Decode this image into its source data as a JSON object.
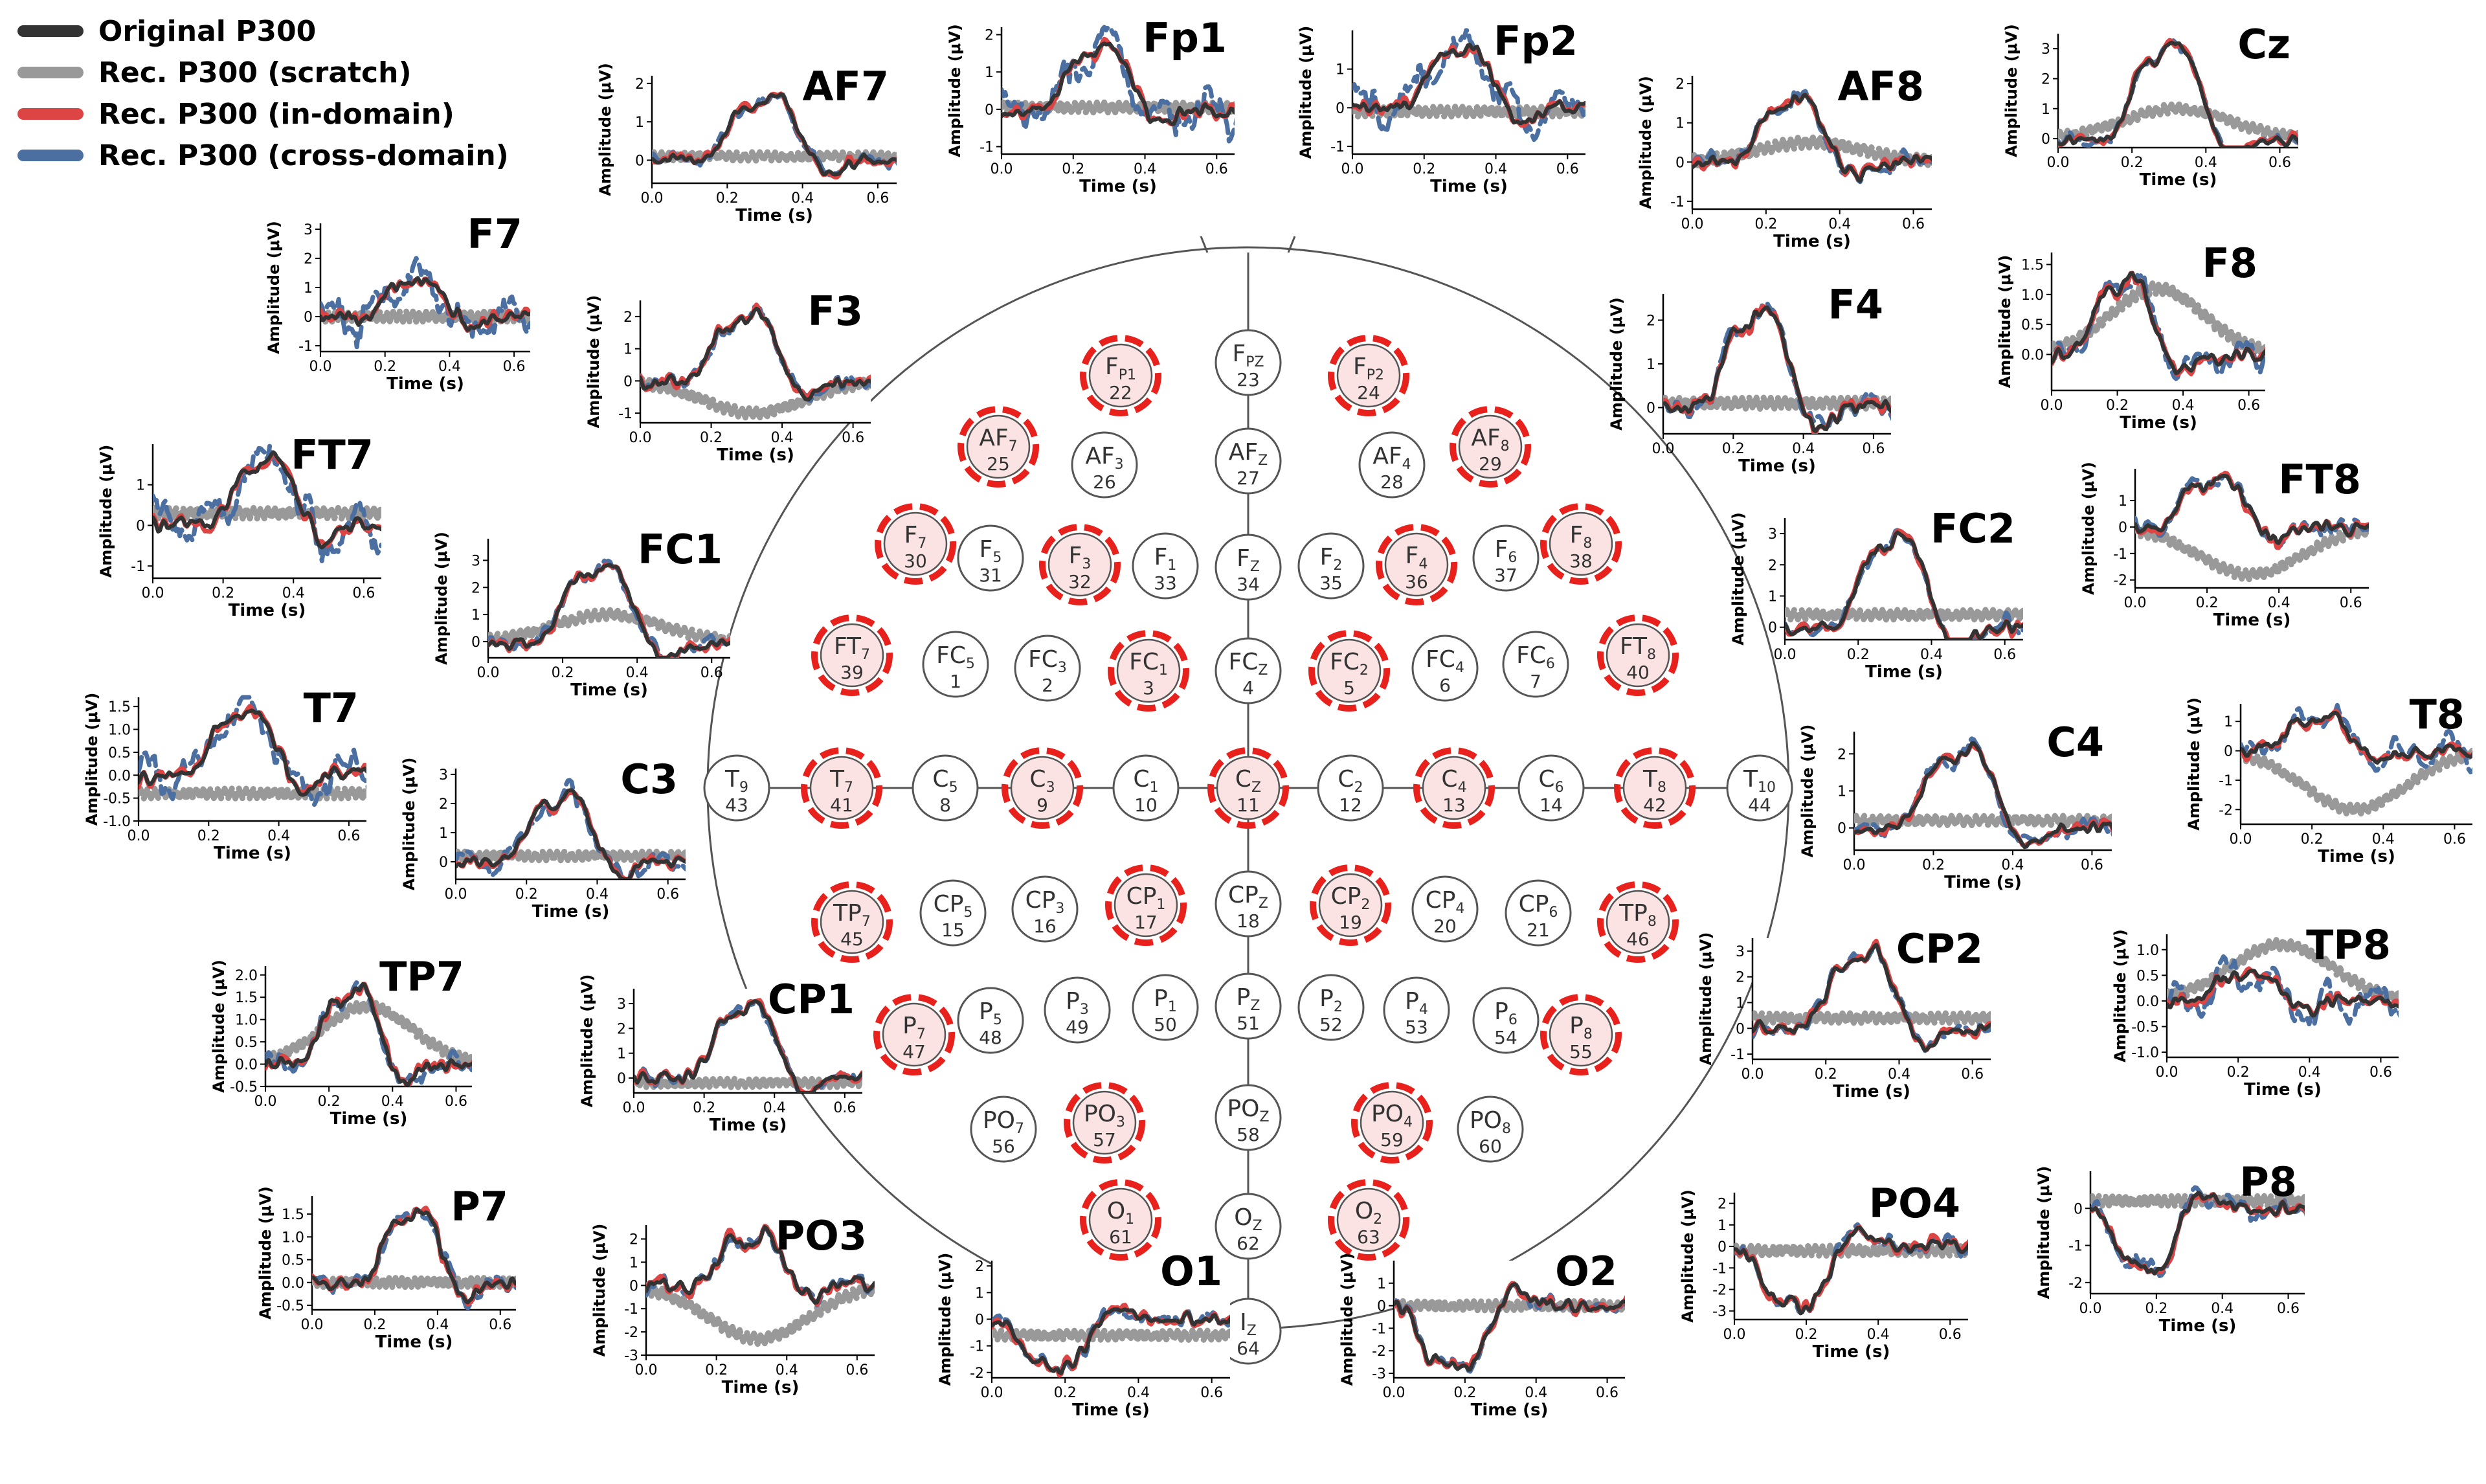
{
  "legend": {
    "items": [
      {
        "label": "Original P300",
        "color": "#333333",
        "dash": false
      },
      {
        "label": "Rec. P300 (scratch)",
        "color": "#999999",
        "dash": false
      },
      {
        "label": "Rec. P300 (in-domain)",
        "color": "#dd4444",
        "dash": false
      },
      {
        "label": "Rec. P300 (cross-domain)",
        "color": "#4a6fa0",
        "dash": false
      }
    ],
    "placement": "top-left"
  },
  "colors": {
    "original": "#333333",
    "scratch": "#999999",
    "in_domain": "#dd4444",
    "cross_domain": "#4a6fa0",
    "highlight_fill": "#fbe3e3",
    "highlight_ring": "#e8211d"
  },
  "axis_labels": {
    "x": "Time (s)",
    "y": "Amplitude (μV)"
  },
  "chart_data": [
    {
      "type": "line",
      "title": "Fp1",
      "xlim": [
        0,
        0.65
      ],
      "ylim": [
        -1.2,
        2.2
      ],
      "xticks": [
        "0.0",
        "0.2",
        "0.4",
        "0.6"
      ],
      "yticks": [
        "-1",
        "0",
        "1",
        "2"
      ],
      "peak": 1.7,
      "peak_t": 0.3,
      "scratch": {
        "shape": "flat",
        "level": 0.05
      },
      "cross_dev": 1.0
    },
    {
      "type": "line",
      "title": "Fp2",
      "xlim": [
        0,
        0.65
      ],
      "ylim": [
        -1.2,
        2.0
      ],
      "xticks": [
        "0.0",
        "0.2",
        "0.4",
        "0.6"
      ],
      "yticks": [
        "-1",
        "0",
        "1"
      ],
      "peak": 1.6,
      "peak_t": 0.33,
      "scratch": {
        "shape": "flat",
        "level": -0.1
      },
      "cross_dev": 0.9
    },
    {
      "type": "line",
      "title": "AF7",
      "xlim": [
        0,
        0.65
      ],
      "ylim": [
        -0.6,
        2.2
      ],
      "xticks": [
        "0.0",
        "0.2",
        "0.4",
        "0.6"
      ],
      "yticks": [
        "0",
        "1",
        "2"
      ],
      "peak": 1.7,
      "peak_t": 0.33,
      "scratch": {
        "shape": "flat",
        "level": 0.1
      },
      "cross_dev": 0.2
    },
    {
      "type": "line",
      "title": "AF8",
      "xlim": [
        0,
        0.65
      ],
      "ylim": [
        -1.2,
        2.2
      ],
      "xticks": [
        "0.0",
        "0.2",
        "0.4",
        "0.6"
      ],
      "yticks": [
        "-1",
        "0",
        "1",
        "2"
      ],
      "peak": 1.6,
      "peak_t": 0.3,
      "scratch": {
        "shape": "hump",
        "level": 0.5
      },
      "cross_dev": 0.2
    },
    {
      "type": "line",
      "title": "Cz",
      "xlim": [
        0,
        0.65
      ],
      "ylim": [
        -0.3,
        3.5
      ],
      "xticks": [
        "0.0",
        "0.2",
        "0.4",
        "0.6"
      ],
      "yticks": [
        "0",
        "1",
        "2",
        "3"
      ],
      "peak": 3.2,
      "peak_t": 0.33,
      "scratch": {
        "shape": "hump",
        "level": 1.0
      },
      "cross_dev": 0.15
    },
    {
      "type": "line",
      "title": "F7",
      "xlim": [
        0,
        0.65
      ],
      "ylim": [
        -1.2,
        3.2
      ],
      "xticks": [
        "0.0",
        "0.2",
        "0.4",
        "0.6"
      ],
      "yticks": [
        "-1",
        "0",
        "1",
        "2",
        "3"
      ],
      "peak": 1.3,
      "peak_t": 0.33,
      "scratch": {
        "shape": "flat",
        "level": 0.0
      },
      "cross_dev": 1.2
    },
    {
      "type": "line",
      "title": "F3",
      "xlim": [
        0,
        0.65
      ],
      "ylim": [
        -1.3,
        2.5
      ],
      "xticks": [
        "0.0",
        "0.2",
        "0.4",
        "0.6"
      ],
      "yticks": [
        "-1",
        "0",
        "1",
        "2"
      ],
      "peak": 2.1,
      "peak_t": 0.33,
      "scratch": {
        "shape": "dip",
        "level": -1.0
      },
      "cross_dev": 0.2
    },
    {
      "type": "line",
      "title": "F4",
      "xlim": [
        0,
        0.65
      ],
      "ylim": [
        -0.6,
        2.6
      ],
      "xticks": [
        "0.0",
        "0.2",
        "0.4",
        "0.6"
      ],
      "yticks": [
        "0",
        "1",
        "2"
      ],
      "peak": 2.3,
      "peak_t": 0.3,
      "scratch": {
        "shape": "flat",
        "level": 0.1
      },
      "cross_dev": 0.2
    },
    {
      "type": "line",
      "title": "F8",
      "xlim": [
        0,
        0.65
      ],
      "ylim": [
        -0.6,
        1.7
      ],
      "xticks": [
        "0.0",
        "0.2",
        "0.4",
        "0.6"
      ],
      "yticks": [
        "0.0",
        "0.5",
        "1.0",
        "1.5"
      ],
      "peak": 1.3,
      "peak_t": 0.25,
      "scratch": {
        "shape": "hump",
        "level": 1.1
      },
      "cross_dev": 0.3
    },
    {
      "type": "line",
      "title": "FT7",
      "xlim": [
        0,
        0.65
      ],
      "ylim": [
        -1.3,
        2.0
      ],
      "xticks": [
        "0.0",
        "0.2",
        "0.4",
        "0.6"
      ],
      "yticks": [
        "-1",
        "0",
        "1"
      ],
      "peak": 1.6,
      "peak_t": 0.35,
      "scratch": {
        "shape": "flat",
        "level": 0.3
      },
      "cross_dev": 0.9
    },
    {
      "type": "line",
      "title": "FT8",
      "xlim": [
        0,
        0.65
      ],
      "ylim": [
        -2.3,
        2.2
      ],
      "xticks": [
        "0.0",
        "0.2",
        "0.4",
        "0.6"
      ],
      "yticks": [
        "-2",
        "-1",
        "0",
        "1"
      ],
      "peak": 1.8,
      "peak_t": 0.25,
      "scratch": {
        "shape": "dip",
        "level": -1.8
      },
      "cross_dev": 0.3
    },
    {
      "type": "line",
      "title": "FC1",
      "xlim": [
        0,
        0.65
      ],
      "ylim": [
        -0.6,
        3.8
      ],
      "xticks": [
        "0.0",
        "0.2",
        "0.4",
        "0.6"
      ],
      "yticks": [
        "0",
        "1",
        "2",
        "3"
      ],
      "peak": 2.9,
      "peak_t": 0.33,
      "scratch": {
        "shape": "hump",
        "level": 1.0
      },
      "cross_dev": 0.3
    },
    {
      "type": "line",
      "title": "FC2",
      "xlim": [
        0,
        0.65
      ],
      "ylim": [
        -0.4,
        3.5
      ],
      "xticks": [
        "0.0",
        "0.2",
        "0.4",
        "0.6"
      ],
      "yticks": [
        "0",
        "1",
        "2",
        "3"
      ],
      "peak": 3.0,
      "peak_t": 0.33,
      "scratch": {
        "shape": "flat",
        "level": 0.4
      },
      "cross_dev": 0.2
    },
    {
      "type": "line",
      "title": "T7",
      "xlim": [
        0,
        0.65
      ],
      "ylim": [
        -1.0,
        1.7
      ],
      "xticks": [
        "0.0",
        "0.2",
        "0.4",
        "0.6"
      ],
      "yticks": [
        "-1.0",
        "-0.5",
        "0.0",
        "0.5",
        "1.0",
        "1.5"
      ],
      "peak": 1.5,
      "peak_t": 0.33,
      "scratch": {
        "shape": "flat",
        "level": -0.4
      },
      "cross_dev": 0.7
    },
    {
      "type": "line",
      "title": "T8",
      "xlim": [
        0,
        0.65
      ],
      "ylim": [
        -2.5,
        1.6
      ],
      "xticks": [
        "0.0",
        "0.2",
        "0.4",
        "0.6"
      ],
      "yticks": [
        "-2",
        "-1",
        "0",
        "1"
      ],
      "peak": 1.1,
      "peak_t": 0.25,
      "scratch": {
        "shape": "dip",
        "level": -2.0
      },
      "cross_dev": 0.6
    },
    {
      "type": "line",
      "title": "C3",
      "xlim": [
        0,
        0.65
      ],
      "ylim": [
        -0.6,
        3.2
      ],
      "xticks": [
        "0.0",
        "0.2",
        "0.4",
        "0.6"
      ],
      "yticks": [
        "0",
        "1",
        "2",
        "3"
      ],
      "peak": 2.4,
      "peak_t": 0.33,
      "scratch": {
        "shape": "flat",
        "level": 0.2
      },
      "cross_dev": 0.5
    },
    {
      "type": "line",
      "title": "C4",
      "xlim": [
        0,
        0.65
      ],
      "ylim": [
        -0.6,
        2.6
      ],
      "xticks": [
        "0.0",
        "0.2",
        "0.4",
        "0.6"
      ],
      "yticks": [
        "0",
        "1",
        "2"
      ],
      "peak": 2.2,
      "peak_t": 0.3,
      "scratch": {
        "shape": "flat",
        "level": 0.2
      },
      "cross_dev": 0.3
    },
    {
      "type": "line",
      "title": "TP7",
      "xlim": [
        0,
        0.65
      ],
      "ylim": [
        -0.5,
        2.2
      ],
      "xticks": [
        "0.0",
        "0.2",
        "0.4",
        "0.6"
      ],
      "yticks": [
        "-0.5",
        "0.0",
        "0.5",
        "1.0",
        "1.5",
        "2.0"
      ],
      "peak": 1.7,
      "peak_t": 0.3,
      "scratch": {
        "shape": "hump",
        "level": 1.3
      },
      "cross_dev": 0.3
    },
    {
      "type": "line",
      "title": "TP8",
      "xlim": [
        0,
        0.65
      ],
      "ylim": [
        -1.1,
        1.3
      ],
      "xticks": [
        "0.0",
        "0.2",
        "0.4",
        "0.6"
      ],
      "yticks": [
        "-1.0",
        "-0.5",
        "0.0",
        "0.5",
        "1.0"
      ],
      "peak": 0.6,
      "peak_t": 0.25,
      "scratch": {
        "shape": "hump",
        "level": 1.1
      },
      "cross_dev": 0.5
    },
    {
      "type": "line",
      "title": "CP1",
      "xlim": [
        0,
        0.65
      ],
      "ylim": [
        -0.6,
        3.6
      ],
      "xticks": [
        "0.0",
        "0.2",
        "0.4",
        "0.6"
      ],
      "yticks": [
        "0",
        "1",
        "2",
        "3"
      ],
      "peak": 3.0,
      "peak_t": 0.35,
      "scratch": {
        "shape": "flat",
        "level": -0.2
      },
      "cross_dev": 0.2
    },
    {
      "type": "line",
      "title": "CP2",
      "xlim": [
        0,
        0.65
      ],
      "ylim": [
        -1.2,
        3.5
      ],
      "xticks": [
        "0.0",
        "0.2",
        "0.4",
        "0.6"
      ],
      "yticks": [
        "-1",
        "0",
        "1",
        "2",
        "3"
      ],
      "peak": 3.0,
      "peak_t": 0.33,
      "scratch": {
        "shape": "flat",
        "level": 0.4
      },
      "cross_dev": 0.2
    },
    {
      "type": "line",
      "title": "P7",
      "xlim": [
        0,
        0.65
      ],
      "ylim": [
        -0.6,
        1.9
      ],
      "xticks": [
        "0.0",
        "0.2",
        "0.4",
        "0.6"
      ],
      "yticks": [
        "-0.5",
        "0.0",
        "0.5",
        "1.0",
        "1.5"
      ],
      "peak": 1.6,
      "peak_t": 0.35,
      "scratch": {
        "shape": "flat",
        "level": 0.0
      },
      "cross_dev": 0.2
    },
    {
      "type": "line",
      "title": "P8",
      "xlim": [
        0,
        0.65
      ],
      "ylim": [
        -2.3,
        1.0
      ],
      "xticks": [
        "0.0",
        "0.2",
        "0.4",
        "0.6"
      ],
      "yticks": [
        "-2",
        "-1",
        "0"
      ],
      "peak": -1.7,
      "peak_t": 0.2,
      "scratch": {
        "shape": "flat",
        "level": 0.2
      },
      "cross_dev": 0.3
    },
    {
      "type": "line",
      "title": "PO3",
      "xlim": [
        0,
        0.65
      ],
      "ylim": [
        -3.0,
        2.6
      ],
      "xticks": [
        "0.0",
        "0.2",
        "0.4",
        "0.6"
      ],
      "yticks": [
        "-3",
        "-2",
        "-1",
        "0",
        "1",
        "2"
      ],
      "peak": 2.2,
      "peak_t": 0.33,
      "scratch": {
        "shape": "dip",
        "level": -2.3
      },
      "cross_dev": 0.2
    },
    {
      "type": "line",
      "title": "PO4",
      "xlim": [
        0,
        0.65
      ],
      "ylim": [
        -3.4,
        2.5
      ],
      "xticks": [
        "0.0",
        "0.2",
        "0.4",
        "0.6"
      ],
      "yticks": [
        "-3",
        "-2",
        "-1",
        "0",
        "1",
        "2"
      ],
      "peak": -2.9,
      "peak_t": 0.2,
      "scratch": {
        "shape": "flat",
        "level": -0.2
      },
      "cross_dev": 0.2
    },
    {
      "type": "line",
      "title": "O1",
      "xlim": [
        0,
        0.65
      ],
      "ylim": [
        -2.2,
        2.2
      ],
      "xticks": [
        "0.0",
        "0.2",
        "0.4",
        "0.6"
      ],
      "yticks": [
        "-2",
        "-1",
        "0",
        "1",
        "2"
      ],
      "peak": -1.9,
      "peak_t": 0.2,
      "scratch": {
        "shape": "flat",
        "level": -0.6
      },
      "cross_dev": 0.2
    },
    {
      "type": "line",
      "title": "O2",
      "xlim": [
        0,
        0.65
      ],
      "ylim": [
        -3.2,
        2.0
      ],
      "xticks": [
        "0.0",
        "0.2",
        "0.4",
        "0.6"
      ],
      "yticks": [
        "-3",
        "-2",
        "-1",
        "0",
        "1"
      ],
      "peak": -2.9,
      "peak_t": 0.2,
      "scratch": {
        "shape": "flat",
        "level": 0.0
      },
      "cross_dev": 0.2
    }
  ],
  "head": {
    "electrodes": [
      {
        "main": "F",
        "sub": "P1",
        "num": "22",
        "hl": true
      },
      {
        "main": "F",
        "sub": "PZ",
        "num": "23",
        "hl": false
      },
      {
        "main": "F",
        "sub": "P2",
        "num": "24",
        "hl": true
      },
      {
        "main": "AF",
        "sub": "7",
        "num": "25",
        "hl": true
      },
      {
        "main": "AF",
        "sub": "3",
        "num": "26",
        "hl": false
      },
      {
        "main": "AF",
        "sub": "Z",
        "num": "27",
        "hl": false
      },
      {
        "main": "AF",
        "sub": "4",
        "num": "28",
        "hl": false
      },
      {
        "main": "AF",
        "sub": "8",
        "num": "29",
        "hl": true
      },
      {
        "main": "F",
        "sub": "7",
        "num": "30",
        "hl": true
      },
      {
        "main": "F",
        "sub": "5",
        "num": "31",
        "hl": false
      },
      {
        "main": "F",
        "sub": "3",
        "num": "32",
        "hl": true
      },
      {
        "main": "F",
        "sub": "1",
        "num": "33",
        "hl": false
      },
      {
        "main": "F",
        "sub": "Z",
        "num": "34",
        "hl": false
      },
      {
        "main": "F",
        "sub": "2",
        "num": "35",
        "hl": false
      },
      {
        "main": "F",
        "sub": "4",
        "num": "36",
        "hl": true
      },
      {
        "main": "F",
        "sub": "6",
        "num": "37",
        "hl": false
      },
      {
        "main": "F",
        "sub": "8",
        "num": "38",
        "hl": true
      },
      {
        "main": "FT",
        "sub": "7",
        "num": "39",
        "hl": true
      },
      {
        "main": "FC",
        "sub": "5",
        "num": "1",
        "hl": false
      },
      {
        "main": "FC",
        "sub": "3",
        "num": "2",
        "hl": false
      },
      {
        "main": "FC",
        "sub": "1",
        "num": "3",
        "hl": true
      },
      {
        "main": "FC",
        "sub": "Z",
        "num": "4",
        "hl": false
      },
      {
        "main": "FC",
        "sub": "2",
        "num": "5",
        "hl": true
      },
      {
        "main": "FC",
        "sub": "4",
        "num": "6",
        "hl": false
      },
      {
        "main": "FC",
        "sub": "6",
        "num": "7",
        "hl": false
      },
      {
        "main": "FT",
        "sub": "8",
        "num": "40",
        "hl": true
      },
      {
        "main": "T",
        "sub": "9",
        "num": "43",
        "hl": false
      },
      {
        "main": "T",
        "sub": "7",
        "num": "41",
        "hl": true
      },
      {
        "main": "C",
        "sub": "5",
        "num": "8",
        "hl": false
      },
      {
        "main": "C",
        "sub": "3",
        "num": "9",
        "hl": true
      },
      {
        "main": "C",
        "sub": "1",
        "num": "10",
        "hl": false
      },
      {
        "main": "C",
        "sub": "Z",
        "num": "11",
        "hl": true
      },
      {
        "main": "C",
        "sub": "2",
        "num": "12",
        "hl": false
      },
      {
        "main": "C",
        "sub": "4",
        "num": "13",
        "hl": true
      },
      {
        "main": "C",
        "sub": "6",
        "num": "14",
        "hl": false
      },
      {
        "main": "T",
        "sub": "8",
        "num": "42",
        "hl": true
      },
      {
        "main": "T",
        "sub": "10",
        "num": "44",
        "hl": false
      },
      {
        "main": "TP",
        "sub": "7",
        "num": "45",
        "hl": true
      },
      {
        "main": "CP",
        "sub": "5",
        "num": "15",
        "hl": false
      },
      {
        "main": "CP",
        "sub": "3",
        "num": "16",
        "hl": false
      },
      {
        "main": "CP",
        "sub": "1",
        "num": "17",
        "hl": true
      },
      {
        "main": "CP",
        "sub": "Z",
        "num": "18",
        "hl": false
      },
      {
        "main": "CP",
        "sub": "2",
        "num": "19",
        "hl": true
      },
      {
        "main": "CP",
        "sub": "4",
        "num": "20",
        "hl": false
      },
      {
        "main": "CP",
        "sub": "6",
        "num": "21",
        "hl": false
      },
      {
        "main": "TP",
        "sub": "8",
        "num": "46",
        "hl": true
      },
      {
        "main": "P",
        "sub": "7",
        "num": "47",
        "hl": true
      },
      {
        "main": "P",
        "sub": "5",
        "num": "48",
        "hl": false
      },
      {
        "main": "P",
        "sub": "3",
        "num": "49",
        "hl": false
      },
      {
        "main": "P",
        "sub": "1",
        "num": "50",
        "hl": false
      },
      {
        "main": "P",
        "sub": "Z",
        "num": "51",
        "hl": false
      },
      {
        "main": "P",
        "sub": "2",
        "num": "52",
        "hl": false
      },
      {
        "main": "P",
        "sub": "4",
        "num": "53",
        "hl": false
      },
      {
        "main": "P",
        "sub": "6",
        "num": "54",
        "hl": false
      },
      {
        "main": "P",
        "sub": "8",
        "num": "55",
        "hl": true
      },
      {
        "main": "PO",
        "sub": "7",
        "num": "56",
        "hl": false
      },
      {
        "main": "PO",
        "sub": "3",
        "num": "57",
        "hl": true
      },
      {
        "main": "PO",
        "sub": "Z",
        "num": "58",
        "hl": false
      },
      {
        "main": "PO",
        "sub": "4",
        "num": "59",
        "hl": true
      },
      {
        "main": "PO",
        "sub": "8",
        "num": "60",
        "hl": false
      },
      {
        "main": "O",
        "sub": "1",
        "num": "61",
        "hl": true
      },
      {
        "main": "O",
        "sub": "Z",
        "num": "62",
        "hl": false
      },
      {
        "main": "O",
        "sub": "2",
        "num": "63",
        "hl": true
      },
      {
        "main": "I",
        "sub": "Z",
        "num": "64",
        "hl": false
      }
    ]
  }
}
